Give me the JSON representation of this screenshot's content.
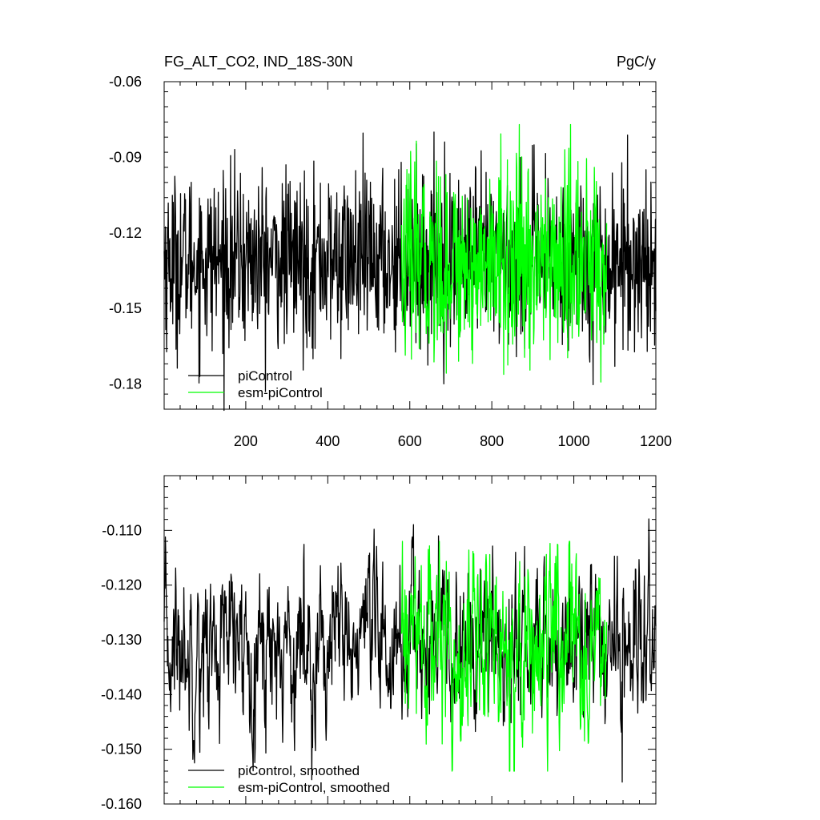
{
  "chart_data": [
    {
      "type": "line",
      "title": "FG_ALT_CO2, IND_18S-30N",
      "units": "PgC/y",
      "xlabel": "",
      "ylabel": "",
      "xlim": [
        1,
        1200
      ],
      "ylim": [
        -0.19,
        -0.06
      ],
      "xticks": [
        200,
        400,
        600,
        800,
        1000,
        1200
      ],
      "yticks": [
        -0.06,
        -0.09,
        -0.12,
        -0.15,
        -0.18
      ],
      "ytick_labels": [
        "-0.06",
        "-0.09",
        "-0.12",
        "-0.15",
        "-0.18"
      ],
      "legend_placement": "bottom-left",
      "grid": false,
      "series": [
        {
          "name": "piControl",
          "color": "#000000",
          "x_start": 1,
          "x_end": 1200,
          "mean": -0.131,
          "std": 0.017,
          "approx_range": [
            -0.191,
            -0.075
          ]
        },
        {
          "name": "esm-piControl",
          "color": "#00ff00",
          "x_start": 580,
          "x_end": 1080,
          "mean": -0.132,
          "std": 0.019,
          "approx_range": [
            -0.185,
            -0.077
          ]
        }
      ]
    },
    {
      "type": "line",
      "title": "",
      "xlabel": "",
      "ylabel": "",
      "xlim": [
        1,
        1200
      ],
      "ylim": [
        -0.16,
        -0.1
      ],
      "yticks": [
        -0.11,
        -0.12,
        -0.13,
        -0.14,
        -0.15,
        -0.16
      ],
      "ytick_labels": [
        "-0.110",
        "-0.120",
        "-0.130",
        "-0.140",
        "-0.150",
        "-0.160"
      ],
      "legend_placement": "bottom-left",
      "grid": false,
      "series": [
        {
          "name": "piControl, smoothed",
          "color": "#000000",
          "x_start": 1,
          "x_end": 1200,
          "mean": -0.131,
          "std": 0.0075,
          "approx_range": [
            -0.156,
            -0.107
          ]
        },
        {
          "name": "esm-piControl, smoothed",
          "color": "#00ff00",
          "x_start": 580,
          "x_end": 1080,
          "mean": -0.131,
          "std": 0.009,
          "approx_range": [
            -0.154,
            -0.112
          ]
        }
      ]
    }
  ]
}
